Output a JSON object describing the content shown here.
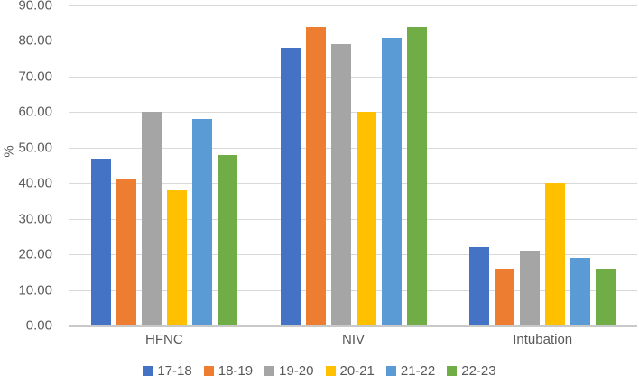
{
  "chart_data": {
    "type": "bar",
    "categories": [
      "HFNC",
      "NIV",
      "Intubation"
    ],
    "series": [
      {
        "name": "17-18",
        "color": "#4472C4",
        "values": [
          47,
          78,
          22
        ]
      },
      {
        "name": "18-19",
        "color": "#ED7D31",
        "values": [
          41,
          84,
          16
        ]
      },
      {
        "name": "19-20",
        "color": "#A5A5A5",
        "values": [
          60,
          79,
          21
        ]
      },
      {
        "name": "20-21",
        "color": "#FFC000",
        "values": [
          38,
          60,
          40
        ]
      },
      {
        "name": "21-22",
        "color": "#5B9BD5",
        "values": [
          58,
          81,
          19
        ]
      },
      {
        "name": "22-23",
        "color": "#70AD47",
        "values": [
          48,
          84,
          16
        ]
      }
    ],
    "title": "",
    "xlabel": "",
    "ylabel": "%",
    "ylim": [
      0,
      90
    ],
    "ytick_step": 10,
    "yticks": [
      "0.00",
      "10.00",
      "20.00",
      "30.00",
      "40.00",
      "50.00",
      "60.00",
      "70.00",
      "80.00",
      "90.00"
    ],
    "grid": true,
    "legend_position": "bottom"
  },
  "colors": {
    "text": "#595959",
    "gridline": "#D9D9D9",
    "axis_line": "#C9C9C9",
    "background": "#FFFFFF"
  }
}
